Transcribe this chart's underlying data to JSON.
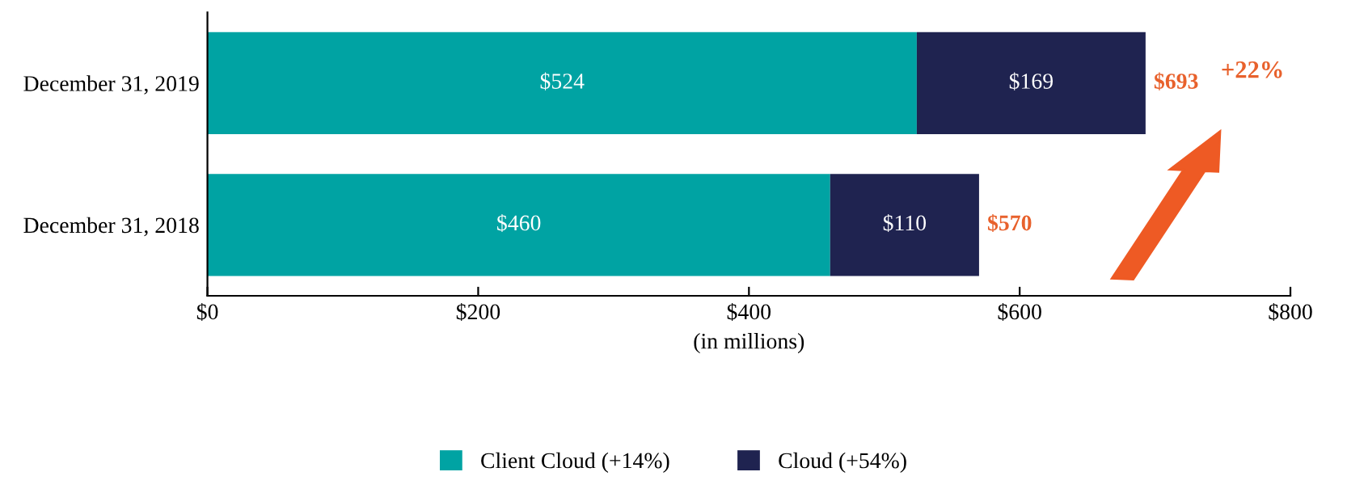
{
  "chart_data": {
    "type": "bar",
    "orientation": "horizontal",
    "stacked": true,
    "xlabel": "(in millions)",
    "categories": [
      "December 31, 2019",
      "December 31, 2018"
    ],
    "series": [
      {
        "name": "Client Cloud (+14%)",
        "color": "#00a3a3",
        "values": [
          524,
          460
        ],
        "value_labels": [
          "$524",
          "$460"
        ]
      },
      {
        "name": "Cloud (+54%)",
        "color": "#1f2350",
        "values": [
          169,
          110
        ],
        "value_labels": [
          "$169",
          "$110"
        ]
      }
    ],
    "totals": [
      "$693",
      "$570"
    ],
    "annotations": [
      "+22%"
    ],
    "xlim": [
      0,
      800
    ],
    "xticks": [
      {
        "value": 0,
        "label": "$0"
      },
      {
        "value": 200,
        "label": "$200"
      },
      {
        "value": 400,
        "label": "$400"
      },
      {
        "value": 600,
        "label": "$600"
      },
      {
        "value": 800,
        "label": "$800"
      }
    ],
    "grid": false,
    "legend": "bottom"
  }
}
